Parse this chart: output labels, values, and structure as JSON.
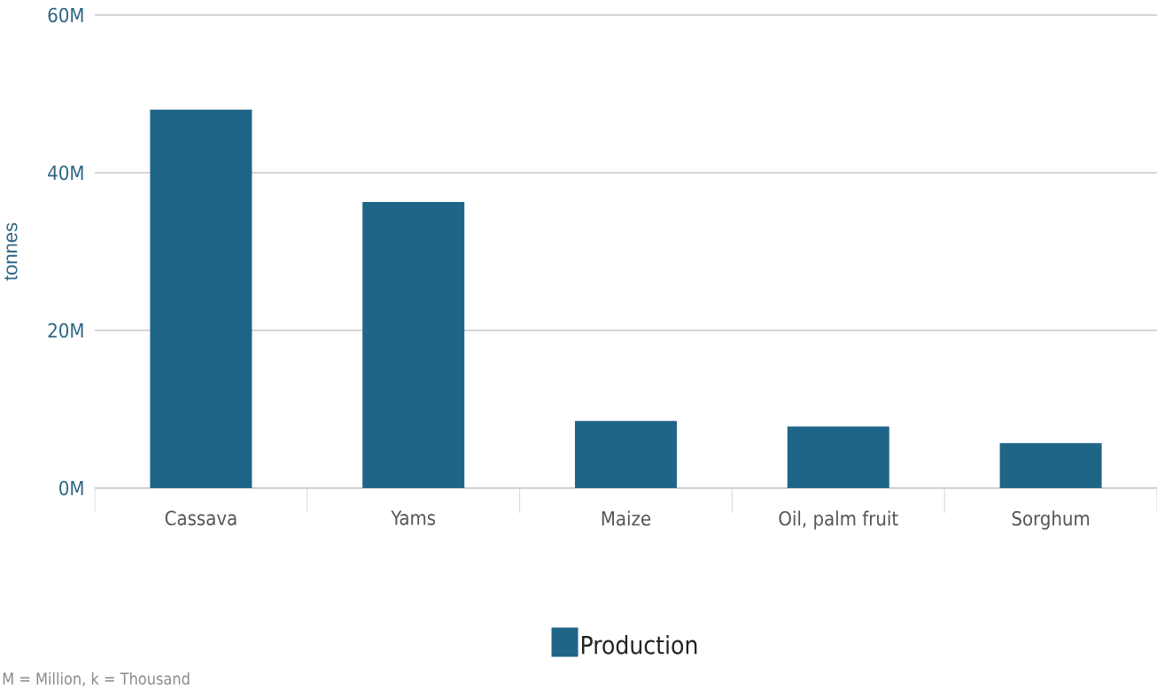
{
  "chart_data": {
    "type": "bar",
    "categories": [
      "Cassava",
      "Yams",
      "Maize",
      "Oil, palm fruit",
      "Sorghum"
    ],
    "series": [
      {
        "name": "Production",
        "color": "#1f6587",
        "values": [
          48000000,
          36300000,
          8500000,
          7800000,
          5700000
        ]
      }
    ],
    "ylabel": "tonnes",
    "ylim": [
      0,
      60000000
    ],
    "yticks": [
      {
        "value": 0,
        "label": "0M"
      },
      {
        "value": 20000000,
        "label": "20M"
      },
      {
        "value": 40000000,
        "label": "40M"
      },
      {
        "value": 60000000,
        "label": "60M"
      }
    ],
    "grid": "y",
    "legend": "bottom",
    "annotations": [
      "M = Million, k = Thousand"
    ]
  }
}
